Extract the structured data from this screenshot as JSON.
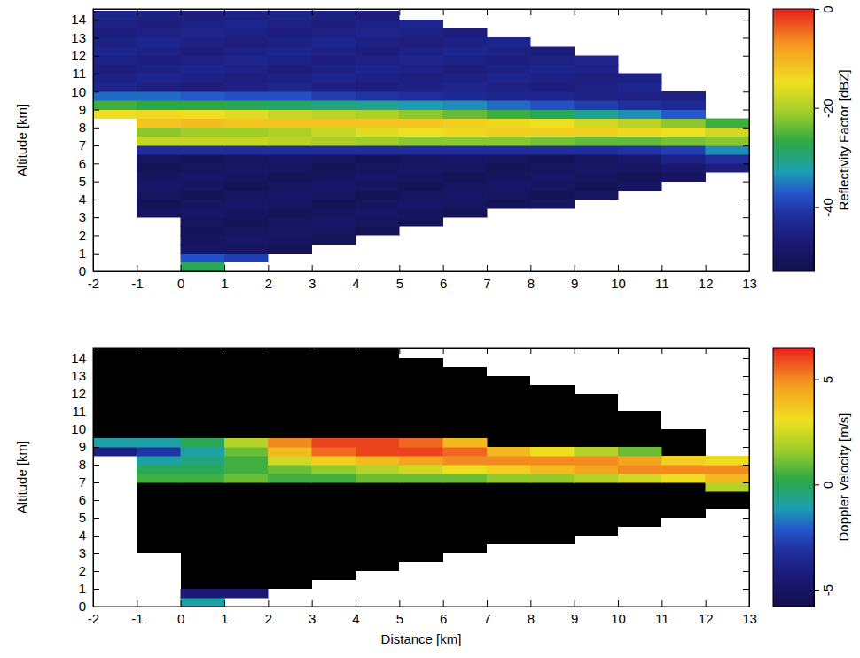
{
  "chart_data": [
    {
      "type": "heatmap",
      "ylabel": "Altitude [km]",
      "x": [
        -1.5,
        -0.5,
        0.5,
        1.5,
        2.5,
        3.5,
        4.5,
        5.5,
        6.5,
        7.5,
        8.5,
        9.5,
        10.5,
        11.5,
        12.5
      ],
      "y": [
        0.25,
        0.75,
        1.25,
        1.75,
        2.25,
        2.75,
        3.25,
        3.75,
        4.25,
        4.75,
        5.25,
        5.75,
        6.25,
        6.75,
        7.25,
        7.75,
        8.25,
        8.75,
        9.25,
        9.75,
        10.25,
        10.75,
        11.25,
        11.75,
        12.25,
        12.75,
        13.25,
        13.75,
        14.25
      ],
      "values": [
        [
          null,
          null,
          -28,
          null,
          null,
          null,
          null,
          null,
          null,
          null,
          null,
          null,
          null,
          null,
          null
        ],
        [
          null,
          null,
          -38,
          -40,
          null,
          null,
          null,
          null,
          null,
          null,
          null,
          null,
          null,
          null,
          null
        ],
        [
          null,
          null,
          -49,
          -50,
          -51,
          null,
          null,
          null,
          null,
          null,
          null,
          null,
          null,
          null,
          null
        ],
        [
          null,
          null,
          -50,
          -49,
          -50,
          -51,
          null,
          null,
          null,
          null,
          null,
          null,
          null,
          null,
          null
        ],
        [
          null,
          null,
          -51,
          -50,
          -49,
          -50,
          -51,
          null,
          null,
          null,
          null,
          null,
          null,
          null,
          null
        ],
        [
          null,
          null,
          -50,
          -51,
          -50,
          -49,
          -50,
          -51,
          null,
          null,
          null,
          null,
          null,
          null,
          null
        ],
        [
          null,
          -50,
          -49,
          -50,
          -51,
          -50,
          -49,
          -50,
          -51,
          null,
          null,
          null,
          null,
          null,
          null
        ],
        [
          null,
          -51,
          -50,
          -49,
          -50,
          -51,
          -50,
          -49,
          -50,
          -51,
          -50,
          null,
          null,
          null,
          null
        ],
        [
          null,
          -50,
          -51,
          -50,
          -49,
          -50,
          -51,
          -50,
          -49,
          -50,
          -51,
          -50,
          null,
          null,
          null
        ],
        [
          null,
          -49,
          -50,
          -51,
          -50,
          -49,
          -50,
          -51,
          -50,
          -49,
          -50,
          -51,
          -50,
          null,
          null
        ],
        [
          null,
          -50,
          -49,
          -50,
          -51,
          -50,
          -49,
          -50,
          -51,
          -50,
          -49,
          -50,
          -51,
          -50,
          null
        ],
        [
          null,
          -51,
          -50,
          -49,
          -50,
          -51,
          -50,
          -49,
          -50,
          -51,
          -50,
          -49,
          -50,
          -48,
          -46
        ],
        [
          null,
          -50,
          -51,
          -50,
          -49,
          -50,
          -51,
          -50,
          -49,
          -50,
          -51,
          -50,
          -48,
          -45,
          -42
        ],
        [
          null,
          -42,
          -42,
          -42,
          -42,
          -42,
          -42,
          -42,
          -42,
          -42,
          -42,
          -42,
          -41,
          -40,
          -34
        ],
        [
          null,
          -18,
          -18,
          -18,
          -19,
          -20,
          -21,
          -22,
          -22,
          -22,
          -23,
          -24,
          -24,
          -23,
          -22
        ],
        [
          null,
          -22,
          -21,
          -21,
          -20,
          -18,
          -16,
          -15,
          -14,
          -13,
          -13,
          -13,
          -14,
          -15,
          -17
        ],
        [
          null,
          -12,
          -11,
          -12,
          -12,
          -12,
          -12,
          -12,
          -13,
          -14,
          -15,
          -17,
          -19,
          -22,
          -26
        ],
        [
          -15,
          -14,
          -15,
          -16,
          -18,
          -19,
          -20,
          -22,
          -24,
          -26,
          -28,
          -31,
          -34,
          -37,
          null
        ],
        [
          -26,
          -27,
          -27,
          -28,
          -29,
          -30,
          -31,
          -33,
          -34,
          -36,
          -38,
          -40,
          -42,
          -43,
          null
        ],
        [
          -36,
          -36,
          -37,
          -38,
          -38,
          -40,
          -41,
          -42,
          -43,
          -44,
          -44,
          -45,
          -45,
          -45,
          null
        ],
        [
          -44,
          -45,
          -46,
          -45,
          -44,
          -45,
          -46,
          -45,
          -44,
          -45,
          -46,
          -45,
          -44,
          null,
          null
        ],
        [
          -45,
          -44,
          -45,
          -46,
          -45,
          -44,
          -45,
          -46,
          -45,
          -44,
          -45,
          -46,
          -45,
          null,
          null
        ],
        [
          -46,
          -45,
          -44,
          -45,
          -46,
          -45,
          -44,
          -45,
          -46,
          -45,
          -44,
          -45,
          null,
          null,
          null
        ],
        [
          -45,
          -46,
          -45,
          -44,
          -45,
          -46,
          -45,
          -44,
          -45,
          -46,
          -45,
          -44,
          null,
          null,
          null
        ],
        [
          -44,
          -45,
          -46,
          -45,
          -44,
          -45,
          -46,
          -45,
          -44,
          -45,
          -46,
          null,
          null,
          null,
          null
        ],
        [
          -45,
          -44,
          -45,
          -46,
          -45,
          -44,
          -45,
          -46,
          -45,
          -44,
          null,
          null,
          null,
          null,
          null
        ],
        [
          -46,
          -45,
          -44,
          -45,
          -46,
          -45,
          -44,
          -45,
          -46,
          null,
          null,
          null,
          null,
          null,
          null
        ],
        [
          -45,
          -46,
          -45,
          -44,
          -45,
          -46,
          -45,
          -44,
          null,
          null,
          null,
          null,
          null,
          null,
          null
        ],
        [
          -44,
          -45,
          -46,
          -45,
          -44,
          -45,
          -46,
          null,
          null,
          null,
          null,
          null,
          null,
          null,
          null
        ]
      ],
      "xlim": [
        -2,
        13
      ],
      "ylim": [
        0,
        14.6
      ],
      "xticks": [
        -2,
        -1,
        0,
        1,
        2,
        3,
        4,
        5,
        6,
        7,
        8,
        9,
        10,
        11,
        12,
        13
      ],
      "yticks": [
        0,
        1,
        2,
        3,
        4,
        5,
        6,
        7,
        8,
        9,
        10,
        11,
        12,
        13,
        14
      ],
      "colorbar": {
        "label": "Reflectivity Factor [dBZ]",
        "range": [
          -53,
          0
        ],
        "ticks": [
          -40,
          -20,
          0
        ]
      }
    },
    {
      "type": "heatmap",
      "xlabel": "Distance [km]",
      "ylabel": "Altitude [km]",
      "x": [
        -1.5,
        -0.5,
        0.5,
        1.5,
        2.5,
        3.5,
        4.5,
        5.5,
        6.5,
        7.5,
        8.5,
        9.5,
        10.5,
        11.5,
        12.5
      ],
      "y": [
        0.25,
        0.75,
        1.25,
        1.75,
        2.25,
        2.75,
        3.25,
        3.75,
        4.25,
        4.75,
        5.25,
        5.75,
        6.25,
        6.75,
        7.25,
        7.75,
        8.25,
        8.75,
        9.25,
        9.75,
        10.25,
        10.75,
        11.25,
        11.75,
        12.25,
        12.75,
        13.25,
        13.75,
        14.25
      ],
      "values": [
        [
          null,
          null,
          -1,
          null,
          null,
          null,
          null,
          null,
          null,
          null,
          null,
          null,
          null,
          null,
          null
        ],
        [
          null,
          null,
          -4.5,
          -4.5,
          null,
          null,
          null,
          null,
          null,
          null,
          null,
          null,
          null,
          null,
          null
        ],
        [
          null,
          null,
          null,
          null,
          null,
          null,
          null,
          null,
          null,
          null,
          null,
          null,
          null,
          null,
          null
        ],
        [
          null,
          null,
          null,
          null,
          null,
          null,
          null,
          null,
          null,
          null,
          null,
          null,
          null,
          null,
          null
        ],
        [
          null,
          null,
          null,
          null,
          null,
          null,
          null,
          null,
          null,
          null,
          null,
          null,
          null,
          null,
          null
        ],
        [
          null,
          null,
          null,
          null,
          null,
          null,
          null,
          null,
          null,
          null,
          null,
          null,
          null,
          null,
          null
        ],
        [
          null,
          null,
          null,
          null,
          null,
          null,
          null,
          null,
          null,
          null,
          null,
          null,
          null,
          null,
          null
        ],
        [
          null,
          null,
          null,
          null,
          null,
          null,
          null,
          null,
          null,
          null,
          null,
          null,
          null,
          null,
          null
        ],
        [
          null,
          null,
          null,
          null,
          null,
          null,
          null,
          null,
          null,
          null,
          null,
          null,
          null,
          null,
          null
        ],
        [
          null,
          null,
          null,
          null,
          null,
          null,
          null,
          null,
          null,
          null,
          null,
          null,
          null,
          null,
          null
        ],
        [
          null,
          null,
          null,
          null,
          null,
          null,
          null,
          null,
          null,
          null,
          null,
          null,
          null,
          null,
          null
        ],
        [
          null,
          null,
          null,
          null,
          null,
          null,
          null,
          null,
          null,
          null,
          null,
          null,
          null,
          null,
          null
        ],
        [
          null,
          null,
          null,
          null,
          null,
          null,
          null,
          null,
          null,
          null,
          null,
          null,
          null,
          null,
          null
        ],
        [
          null,
          null,
          null,
          null,
          null,
          null,
          null,
          null,
          null,
          null,
          null,
          null,
          null,
          null,
          2
        ],
        [
          null,
          0.5,
          0.5,
          1,
          0.5,
          0.5,
          1,
          1,
          1,
          1.5,
          1.5,
          2,
          2.5,
          3,
          4
        ],
        [
          null,
          0,
          0,
          0.5,
          1,
          1.5,
          2,
          2.5,
          3,
          3.5,
          4,
          4.5,
          5,
          5,
          5
        ],
        [
          null,
          -1,
          -0.5,
          0.5,
          2.5,
          3.5,
          4,
          4.5,
          5,
          5,
          5,
          5,
          4.5,
          3.5,
          3
        ],
        [
          -4,
          -3,
          -1,
          1,
          4,
          5.5,
          6,
          6,
          5.5,
          4,
          3,
          2,
          1,
          null,
          null
        ],
        [
          -1,
          -1,
          0,
          2,
          5,
          6,
          6,
          5.5,
          4,
          null,
          null,
          null,
          null,
          null,
          null
        ],
        [
          null,
          null,
          null,
          null,
          null,
          null,
          null,
          null,
          null,
          null,
          null,
          null,
          null,
          null,
          null
        ],
        [
          null,
          null,
          null,
          null,
          null,
          null,
          null,
          null,
          null,
          null,
          null,
          null,
          null,
          null,
          null
        ],
        [
          null,
          null,
          null,
          null,
          null,
          null,
          null,
          null,
          null,
          null,
          null,
          null,
          null,
          null,
          null
        ],
        [
          null,
          null,
          null,
          null,
          null,
          null,
          null,
          null,
          null,
          null,
          null,
          null,
          null,
          null,
          null
        ],
        [
          null,
          null,
          null,
          null,
          null,
          null,
          null,
          null,
          null,
          null,
          null,
          null,
          null,
          null,
          null
        ],
        [
          null,
          null,
          null,
          null,
          null,
          null,
          null,
          null,
          null,
          null,
          null,
          null,
          null,
          null,
          null
        ],
        [
          null,
          null,
          null,
          null,
          null,
          null,
          null,
          null,
          null,
          null,
          null,
          null,
          null,
          null,
          null
        ],
        [
          null,
          null,
          null,
          null,
          null,
          null,
          null,
          null,
          null,
          null,
          null,
          null,
          null,
          null,
          null
        ],
        [
          null,
          null,
          null,
          null,
          null,
          null,
          null,
          null,
          null,
          null,
          null,
          null,
          null,
          null,
          null
        ],
        [
          null,
          null,
          null,
          null,
          null,
          null,
          null,
          null,
          null,
          null,
          null,
          null,
          null,
          null,
          null
        ]
      ],
      "xlim": [
        -2,
        13
      ],
      "ylim": [
        0,
        14.6
      ],
      "xticks": [
        -2,
        -1,
        0,
        1,
        2,
        3,
        4,
        5,
        6,
        7,
        8,
        9,
        10,
        11,
        12,
        13
      ],
      "yticks": [
        0,
        1,
        2,
        3,
        4,
        5,
        6,
        7,
        8,
        9,
        10,
        11,
        12,
        13,
        14
      ],
      "colorbar": {
        "label": "Doppler Velocity [m/s]",
        "range": [
          -5.8,
          6.5
        ],
        "ticks": [
          -5,
          0,
          5
        ]
      }
    }
  ]
}
